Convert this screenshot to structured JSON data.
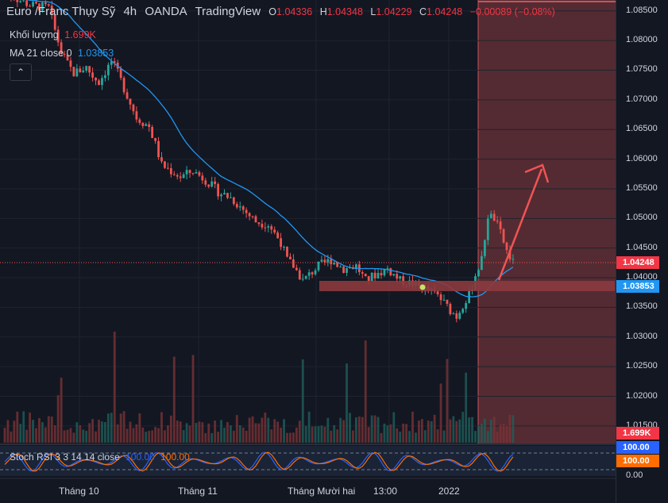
{
  "legend": {
    "symbol": "Euro /Franc Thụy Sỹ",
    "interval": "4h",
    "broker": "OANDA",
    "source": "TradingView",
    "o_label": "O",
    "o": "1.04336",
    "h_label": "H",
    "h": "1.04348",
    "l_label": "L",
    "l": "1.04229",
    "c_label": "C",
    "c": "1.04248",
    "change": "−0.00089 (−0.08%)"
  },
  "volume": {
    "label": "Khối lượng",
    "value": "1.699K"
  },
  "ma": {
    "label": "MA 21 close 0",
    "value": "1.03853"
  },
  "stoch": {
    "label": "Stoch RSI 3 3 14 14 close",
    "k": "100.00",
    "d": "100.00"
  },
  "y_axis": {
    "ticks": [
      "1.08500",
      "1.08000",
      "1.07500",
      "1.07000",
      "1.06500",
      "1.06000",
      "1.05500",
      "1.05000",
      "1.04500",
      "1.04000",
      "1.03500",
      "1.03000",
      "1.02500",
      "1.02000",
      "1.01500"
    ],
    "last_price": "1.04248",
    "ma_price": "1.03853",
    "volume_tag": "1.699K",
    "stoch_k_tag": "100.00",
    "stoch_d_tag": "100.00",
    "stoch_zero": "0.00"
  },
  "x_axis": [
    "Tháng 10",
    "Tháng 11",
    "Tháng Mười hai",
    "13:00",
    "2022"
  ],
  "colors": {
    "up": "#26a69a",
    "down": "#ef5350",
    "ma": "#2196f3",
    "zone": "#8b3a3e",
    "arrow": "#f05454",
    "bg": "#131722"
  },
  "chart_data": {
    "type": "candlestick",
    "ylim": [
      1.0285,
      1.0855
    ],
    "price_path": [
      [
        0,
        1.088
      ],
      [
        8,
        1.086
      ],
      [
        14,
        1.0855
      ],
      [
        18,
        1.078
      ],
      [
        20,
        1.076
      ],
      [
        22,
        1.0745
      ],
      [
        26,
        1.0755
      ],
      [
        28,
        1.074
      ],
      [
        30,
        1.073
      ],
      [
        34,
        1.0765
      ],
      [
        36,
        1.0745
      ],
      [
        40,
        1.0695
      ],
      [
        42,
        1.067
      ],
      [
        46,
        1.0655
      ],
      [
        48,
        1.0625
      ],
      [
        50,
        1.059
      ],
      [
        53,
        1.058
      ],
      [
        56,
        1.057
      ],
      [
        60,
        1.058
      ],
      [
        64,
        1.0565
      ],
      [
        68,
        1.0545
      ],
      [
        72,
        1.0535
      ],
      [
        76,
        1.0515
      ],
      [
        80,
        1.0495
      ],
      [
        84,
        1.049
      ],
      [
        88,
        1.046
      ],
      [
        90,
        1.043
      ],
      [
        92,
        1.042
      ],
      [
        95,
        1.0395
      ],
      [
        100,
        1.042
      ],
      [
        104,
        1.043
      ],
      [
        108,
        1.0415
      ],
      [
        112,
        1.042
      ],
      [
        115,
        1.0395
      ],
      [
        118,
        1.0405
      ],
      [
        122,
        1.0415
      ],
      [
        126,
        1.0395
      ],
      [
        130,
        1.039
      ],
      [
        134,
        1.038
      ],
      [
        138,
        1.037
      ],
      [
        142,
        1.0345
      ],
      [
        144,
        1.0335
      ],
      [
        146,
        1.0355
      ],
      [
        148,
        1.037
      ],
      [
        150,
        1.0405
      ],
      [
        152,
        1.043
      ],
      [
        154,
        1.0505
      ],
      [
        156,
        1.05
      ],
      [
        158,
        1.0475
      ],
      [
        160,
        1.0445
      ],
      [
        162,
        1.0425
      ]
    ],
    "ma_series": "MA 21 close 0",
    "support_zone": [
      1.0375,
      1.0392
    ],
    "projected_arrow": {
      "from": 1.039,
      "to": 1.0595
    },
    "last_price": 1.04248
  }
}
